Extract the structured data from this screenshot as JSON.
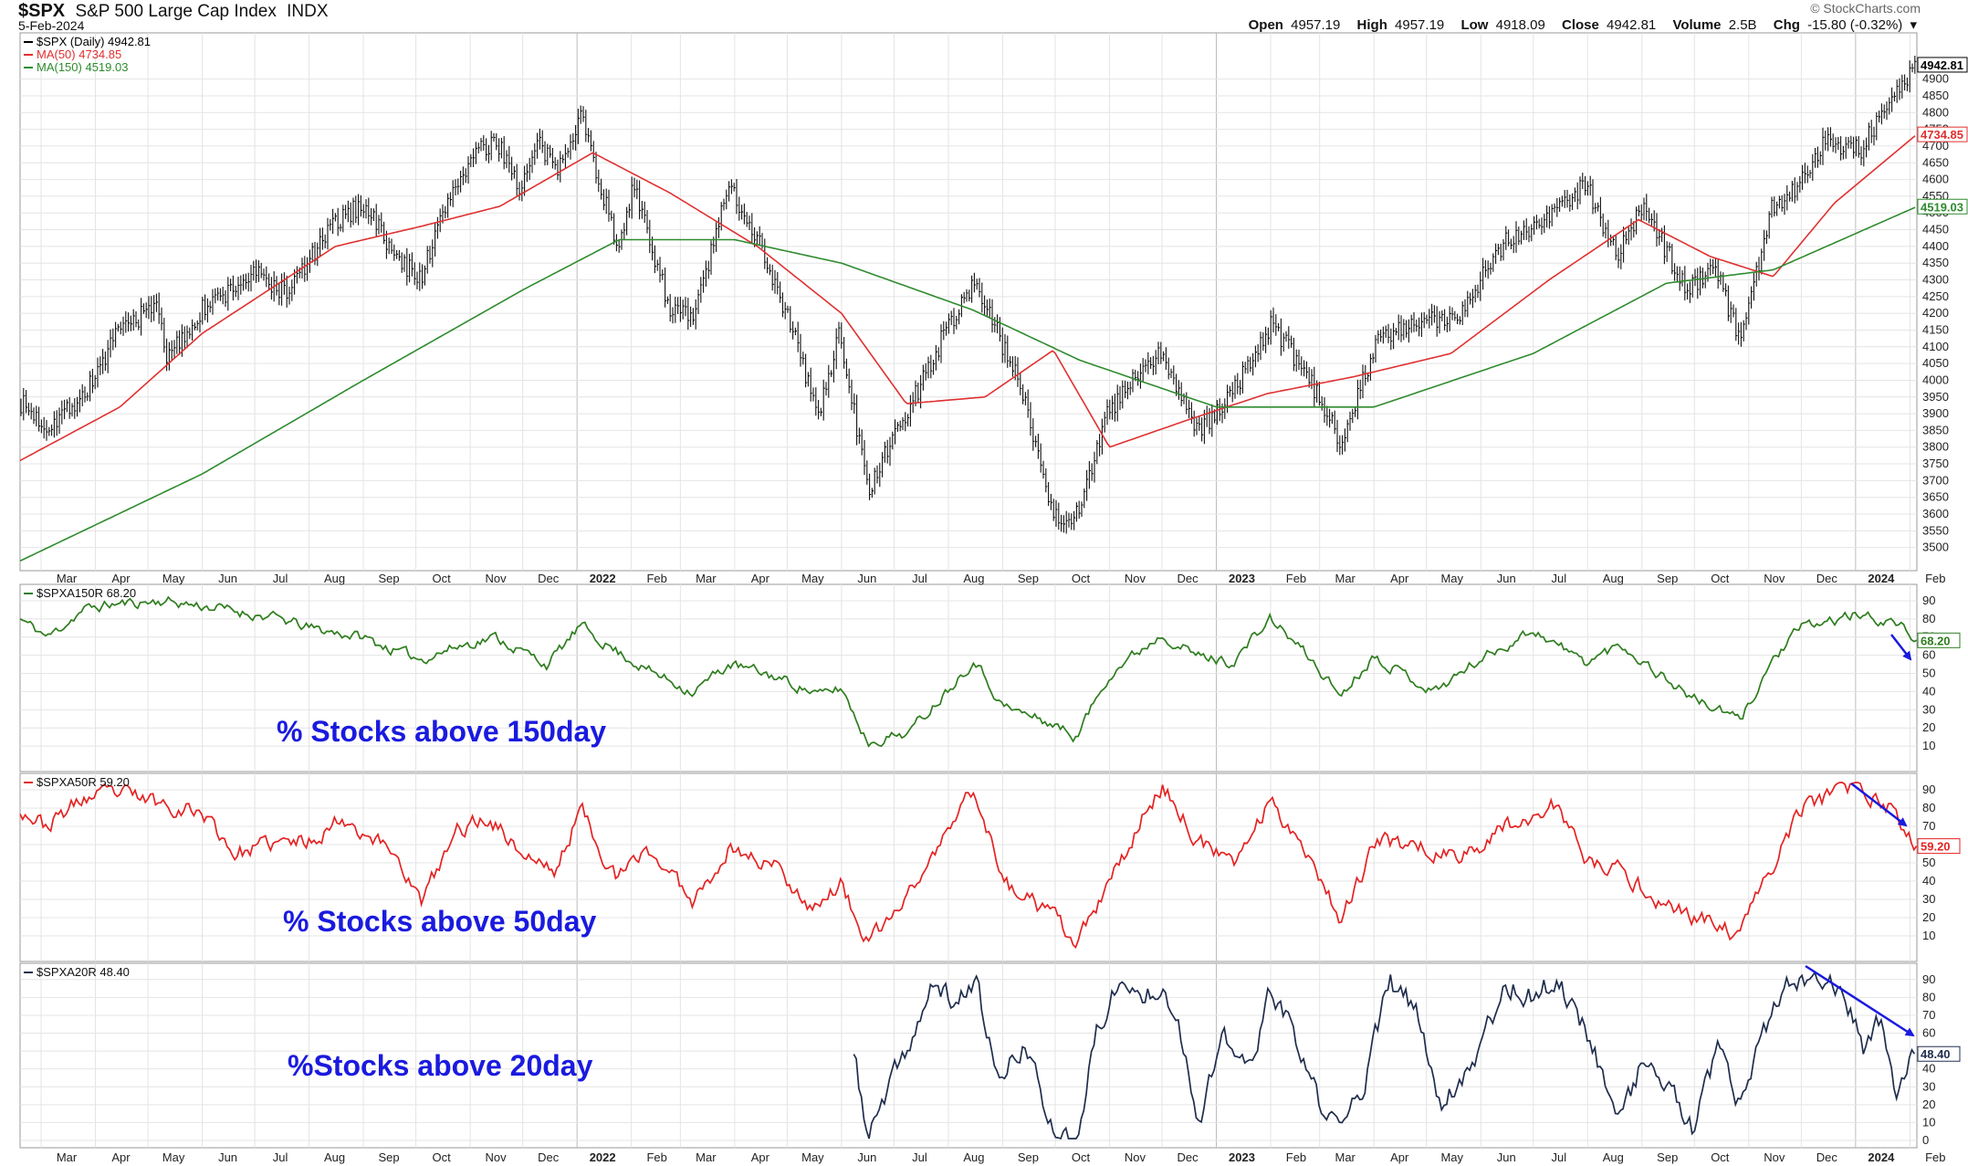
{
  "header": {
    "symbol": "$SPX",
    "name": "S&P 500 Large Cap Index",
    "exchange": "INDX",
    "date": "5-Feb-2024",
    "credit": "© StockCharts.com",
    "quote": {
      "open_label": "Open",
      "open": "4957.19",
      "high_label": "High",
      "high": "4957.19",
      "low_label": "Low",
      "low": "4918.09",
      "close_label": "Close",
      "close": "4942.81",
      "volume_label": "Volume",
      "volume": "2.5B",
      "chg_label": "Chg",
      "chg": "-15.80 (-0.32%)"
    }
  },
  "colors": {
    "price": "#111111",
    "ma50": "#e03030",
    "ma150": "#2e8b2e",
    "pct150": "#2e7d1e",
    "pct50": "#e52222",
    "pct20": "#1f2d4d",
    "arrow": "#1a1adf",
    "grid": "#e4e4e4"
  },
  "chart_data": [
    {
      "panel": "price",
      "type": "line",
      "style": "ohlc-bars",
      "ylim": [
        3480,
        5000
      ],
      "y_ticks": [
        3500,
        3550,
        3600,
        3650,
        3700,
        3750,
        3800,
        3850,
        3900,
        3950,
        4000,
        4050,
        4100,
        4150,
        4200,
        4250,
        4300,
        4350,
        4400,
        4450,
        4500,
        4550,
        4600,
        4650,
        4700,
        4750,
        4800,
        4850,
        4900
      ],
      "last_labels": [
        "4942.81",
        "4734.85",
        "4519.03"
      ],
      "x_ticks": [
        "Mar",
        "Apr",
        "May",
        "Jun",
        "Jul",
        "Aug",
        "Sep",
        "Oct",
        "Nov",
        "Dec",
        "2022",
        "Feb",
        "Mar",
        "Apr",
        "May",
        "Jun",
        "Jul",
        "Aug",
        "Sep",
        "Oct",
        "Nov",
        "Dec",
        "2023",
        "Feb",
        "Mar",
        "Apr",
        "May",
        "Jun",
        "Jul",
        "Aug",
        "Sep",
        "Oct",
        "Nov",
        "Dec",
        "2024",
        "Feb"
      ],
      "legend": [
        {
          "text": "$SPX (Daily) 4942.81"
        },
        {
          "text": "MA(50) 4734.85"
        },
        {
          "text": "MA(150) 4519.03"
        }
      ],
      "x_range": [
        "2021-02-17",
        "2024-02-05"
      ],
      "series": [
        {
          "name": "$SPX (Daily)",
          "x": [
            "2021-02-17",
            "2021-03-04",
            "2021-03-26",
            "2021-04-15",
            "2021-05-07",
            "2021-05-12",
            "2021-06-01",
            "2021-07-01",
            "2021-07-19",
            "2021-08-16",
            "2021-09-02",
            "2021-09-20",
            "2021-10-04",
            "2021-10-21",
            "2021-11-04",
            "2021-11-18",
            "2021-11-30",
            "2021-12-10",
            "2021-12-20",
            "2022-01-03",
            "2022-01-24",
            "2022-02-02",
            "2022-02-23",
            "2022-03-08",
            "2022-03-29",
            "2022-04-14",
            "2022-05-04",
            "2022-05-19",
            "2022-05-31",
            "2022-06-16",
            "2022-07-08",
            "2022-07-29",
            "2022-08-16",
            "2022-09-13",
            "2022-09-30",
            "2022-10-12",
            "2022-10-31",
            "2022-11-15",
            "2022-12-01",
            "2022-12-22",
            "2023-01-11",
            "2023-02-02",
            "2023-02-24",
            "2023-03-13",
            "2023-04-03",
            "2023-04-28",
            "2023-05-18",
            "2023-06-15",
            "2023-07-03",
            "2023-07-31",
            "2023-08-18",
            "2023-09-01",
            "2023-09-27",
            "2023-10-12",
            "2023-10-27",
            "2023-11-14",
            "2023-12-01",
            "2023-12-14",
            "2024-01-04",
            "2024-01-24",
            "2024-02-05"
          ],
          "values": [
            3935,
            3860,
            3960,
            4150,
            4230,
            4060,
            4210,
            4320,
            4260,
            4470,
            4530,
            4360,
            4310,
            4560,
            4680,
            4705,
            4570,
            4710,
            4620,
            4800,
            4400,
            4580,
            4220,
            4180,
            4580,
            4430,
            4150,
            3890,
            4150,
            3670,
            3900,
            4130,
            4300,
            3960,
            3600,
            3580,
            3900,
            4000,
            4080,
            3840,
            3970,
            4170,
            3990,
            3820,
            4120,
            4170,
            4190,
            4420,
            4460,
            4590,
            4370,
            4520,
            4270,
            4350,
            4120,
            4510,
            4590,
            4720,
            4690,
            4860,
            4942.81
          ]
        },
        {
          "name": "MA(50)",
          "x": [
            "2021-02-17",
            "2021-04-15",
            "2021-06-01",
            "2021-08-16",
            "2021-10-04",
            "2021-11-18",
            "2022-01-10",
            "2022-02-23",
            "2022-04-14",
            "2022-06-01",
            "2022-07-08",
            "2022-08-22",
            "2022-09-30",
            "2022-11-01",
            "2022-12-15",
            "2023-01-30",
            "2023-03-20",
            "2023-05-15",
            "2023-07-10",
            "2023-08-30",
            "2023-10-10",
            "2023-11-15",
            "2023-12-20",
            "2024-02-05"
          ],
          "values": [
            3760,
            3920,
            4140,
            4400,
            4460,
            4520,
            4680,
            4560,
            4400,
            4200,
            3930,
            3950,
            4090,
            3800,
            3880,
            3960,
            4010,
            4080,
            4300,
            4480,
            4370,
            4310,
            4530,
            4734.85
          ]
        },
        {
          "name": "MA(150)",
          "x": [
            "2021-02-17",
            "2021-06-01",
            "2021-09-01",
            "2021-12-01",
            "2022-01-25",
            "2022-04-01",
            "2022-06-01",
            "2022-08-15",
            "2022-10-15",
            "2023-01-01",
            "2023-04-01",
            "2023-07-01",
            "2023-09-15",
            "2023-11-15",
            "2024-02-05"
          ],
          "values": [
            3460,
            3720,
            4000,
            4270,
            4420,
            4420,
            4350,
            4210,
            4060,
            3920,
            3920,
            4080,
            4290,
            4330,
            4519.03
          ]
        }
      ]
    },
    {
      "panel": "pct150",
      "type": "line",
      "ylim": [
        0,
        95
      ],
      "y_ticks": [
        10,
        20,
        30,
        40,
        50,
        60,
        70,
        80,
        90
      ],
      "legend": [
        {
          "text": "$SPXA150R 68.20"
        }
      ],
      "last_label": "68.20",
      "annotation": "% Stocks above 150day",
      "x_range": [
        "2021-02-17",
        "2024-02-05"
      ],
      "series": [
        {
          "name": "$SPXA150R",
          "x": [
            "2021-02-17",
            "2021-03-05",
            "2021-03-25",
            "2021-04-10",
            "2021-05-10",
            "2021-06-10",
            "2021-07-15",
            "2021-08-01",
            "2021-09-01",
            "2021-09-20",
            "2021-10-04",
            "2021-10-25",
            "2021-11-15",
            "2021-12-01",
            "2021-12-15",
            "2022-01-03",
            "2022-01-24",
            "2022-02-10",
            "2022-03-08",
            "2022-03-29",
            "2022-04-25",
            "2022-05-20",
            "2022-06-01",
            "2022-06-16",
            "2022-07-10",
            "2022-08-16",
            "2022-09-01",
            "2022-09-30",
            "2022-10-13",
            "2022-11-01",
            "2022-12-01",
            "2022-12-20",
            "2023-01-10",
            "2023-02-01",
            "2023-02-20",
            "2023-03-13",
            "2023-04-01",
            "2023-05-05",
            "2023-06-01",
            "2023-07-01",
            "2023-07-31",
            "2023-08-20",
            "2023-09-05",
            "2023-10-01",
            "2023-10-27",
            "2023-11-15",
            "2023-12-01",
            "2024-01-01",
            "2024-01-24",
            "2024-02-05"
          ],
          "values": [
            80,
            70,
            85,
            88,
            90,
            86,
            80,
            75,
            70,
            62,
            58,
            65,
            70,
            62,
            55,
            76,
            62,
            52,
            40,
            55,
            48,
            38,
            42,
            12,
            18,
            58,
            32,
            22,
            15,
            50,
            72,
            60,
            56,
            80,
            62,
            38,
            60,
            40,
            58,
            74,
            56,
            66,
            54,
            36,
            24,
            58,
            75,
            82,
            78,
            68.2
          ]
        }
      ]
    },
    {
      "panel": "pct50",
      "type": "line",
      "ylim": [
        0,
        95
      ],
      "y_ticks": [
        10,
        20,
        30,
        40,
        50,
        60,
        70,
        80,
        90
      ],
      "legend": [
        {
          "text": "$SPXA50R 59.20"
        }
      ],
      "last_label": "59.20",
      "annotation": "% Stocks above 50day",
      "x_range": [
        "2021-02-17",
        "2024-02-05"
      ],
      "series": [
        {
          "name": "$SPXA50R",
          "x": [
            "2021-02-17",
            "2021-03-04",
            "2021-03-25",
            "2021-04-15",
            "2021-05-12",
            "2021-06-01",
            "2021-06-20",
            "2021-07-10",
            "2021-08-01",
            "2021-08-20",
            "2021-09-20",
            "2021-10-04",
            "2021-10-25",
            "2021-11-12",
            "2021-12-01",
            "2021-12-20",
            "2022-01-03",
            "2022-01-24",
            "2022-02-10",
            "2022-03-08",
            "2022-03-29",
            "2022-04-25",
            "2022-05-15",
            "2022-06-01",
            "2022-06-16",
            "2022-07-01",
            "2022-07-20",
            "2022-08-16",
            "2022-09-01",
            "2022-09-30",
            "2022-10-13",
            "2022-11-01",
            "2022-11-20",
            "2022-12-01",
            "2022-12-22",
            "2023-01-10",
            "2023-02-01",
            "2023-02-20",
            "2023-03-13",
            "2023-04-03",
            "2023-04-25",
            "2023-05-20",
            "2023-06-15",
            "2023-07-15",
            "2023-07-31",
            "2023-08-20",
            "2023-09-10",
            "2023-10-01",
            "2023-10-27",
            "2023-11-15",
            "2023-12-01",
            "2024-01-01",
            "2024-01-20",
            "2024-02-05"
          ],
          "values": [
            80,
            70,
            85,
            88,
            82,
            78,
            55,
            60,
            62,
            75,
            55,
            28,
            68,
            75,
            55,
            45,
            80,
            40,
            58,
            30,
            58,
            48,
            26,
            38,
            5,
            22,
            48,
            92,
            40,
            20,
            5,
            38,
            75,
            92,
            62,
            48,
            84,
            60,
            20,
            62,
            60,
            52,
            70,
            82,
            50,
            45,
            30,
            20,
            10,
            50,
            80,
            92,
            80,
            59.2
          ]
        }
      ]
    },
    {
      "panel": "pct20",
      "type": "line",
      "ylim": [
        0,
        95
      ],
      "y_ticks": [
        0,
        10,
        20,
        30,
        40,
        50,
        60,
        70,
        80,
        90
      ],
      "legend": [
        {
          "text": "$SPXA20R 48.40"
        }
      ],
      "last_label": "48.40",
      "annotation": "%Stocks above 20day",
      "x_range": [
        "2021-02-17",
        "2024-02-05"
      ],
      "series": [
        {
          "name": "$SPXA20R",
          "x": [
            "2022-06-08",
            "2022-06-16",
            "2022-06-25",
            "2022-07-10",
            "2022-07-25",
            "2022-08-05",
            "2022-08-16",
            "2022-08-30",
            "2022-09-13",
            "2022-09-30",
            "2022-10-13",
            "2022-10-25",
            "2022-11-05",
            "2022-11-20",
            "2022-12-01",
            "2022-12-10",
            "2022-12-22",
            "2023-01-05",
            "2023-01-20",
            "2023-02-02",
            "2023-02-15",
            "2023-03-01",
            "2023-03-13",
            "2023-03-28",
            "2023-04-10",
            "2023-04-25",
            "2023-05-10",
            "2023-05-30",
            "2023-06-15",
            "2023-07-01",
            "2023-07-15",
            "2023-08-01",
            "2023-08-20",
            "2023-09-01",
            "2023-09-15",
            "2023-09-30",
            "2023-10-15",
            "2023-10-27",
            "2023-11-10",
            "2023-11-25",
            "2023-12-10",
            "2023-12-27",
            "2024-01-05",
            "2024-01-15",
            "2024-01-24",
            "2024-02-05"
          ],
          "values": [
            48,
            2,
            20,
            55,
            88,
            75,
            92,
            30,
            55,
            5,
            3,
            60,
            88,
            80,
            90,
            70,
            12,
            55,
            40,
            85,
            55,
            20,
            5,
            38,
            88,
            72,
            20,
            50,
            88,
            80,
            90,
            60,
            12,
            45,
            30,
            5,
            50,
            18,
            60,
            88,
            92,
            80,
            50,
            65,
            30,
            48.4
          ]
        }
      ]
    }
  ]
}
